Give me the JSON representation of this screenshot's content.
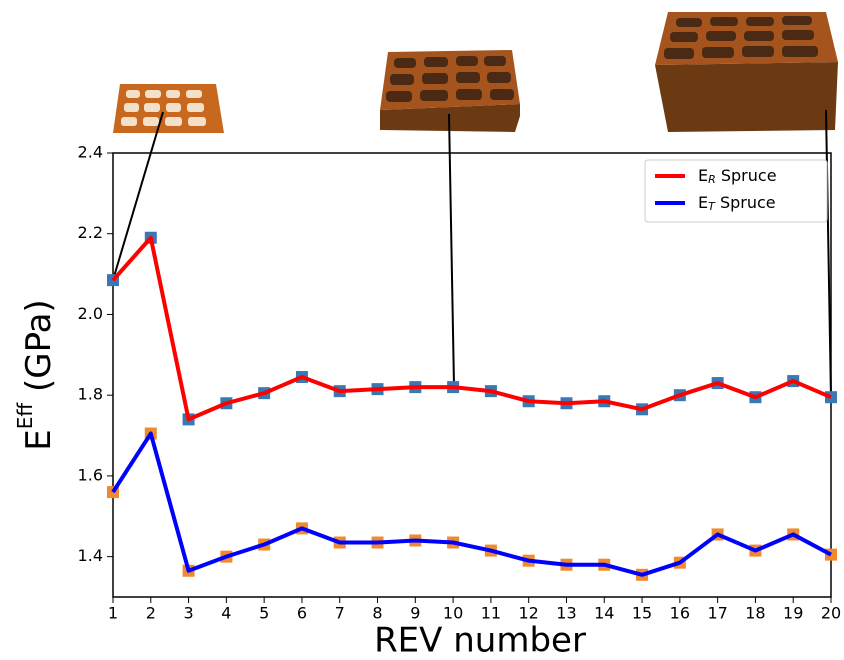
{
  "chart_data": {
    "type": "line",
    "x_label": "REV number",
    "y_label": {
      "base": "E",
      "sup": "Eff",
      "rest": "(GPa)"
    },
    "x": [
      1,
      2,
      3,
      4,
      5,
      6,
      7,
      8,
      9,
      10,
      11,
      12,
      13,
      14,
      15,
      16,
      17,
      18,
      19,
      20
    ],
    "xlim": [
      1,
      20
    ],
    "xticks": [
      1,
      2,
      3,
      4,
      5,
      6,
      7,
      8,
      9,
      10,
      11,
      12,
      13,
      14,
      15,
      16,
      17,
      18,
      19,
      20
    ],
    "ylim": [
      1.3,
      2.4
    ],
    "yticks": [
      1.4,
      1.6,
      1.8,
      {
        "value": 2,
        "label": "2.0"
      },
      2.2,
      2.4
    ],
    "legend_position": "upper right",
    "series": [
      {
        "name": {
          "base": "E",
          "sub": "R",
          "rest": "Spruce"
        },
        "color": "#ff0000",
        "marker_color": "#3a78b5",
        "values": [
          2.085,
          2.19,
          1.74,
          1.78,
          1.805,
          1.845,
          1.81,
          1.815,
          1.82,
          1.82,
          1.81,
          1.785,
          1.78,
          1.785,
          1.765,
          1.8,
          1.83,
          1.795,
          1.835,
          1.795
        ]
      },
      {
        "name": {
          "base": "E",
          "sub": "T",
          "rest": "Spruce"
        },
        "color": "#0000ff",
        "marker_color": "#f08a2c",
        "values": [
          1.56,
          1.705,
          1.365,
          1.4,
          1.43,
          1.47,
          1.435,
          1.435,
          1.44,
          1.435,
          1.415,
          1.39,
          1.38,
          1.38,
          1.355,
          1.385,
          1.455,
          1.415,
          1.455,
          1.405
        ]
      }
    ]
  }
}
